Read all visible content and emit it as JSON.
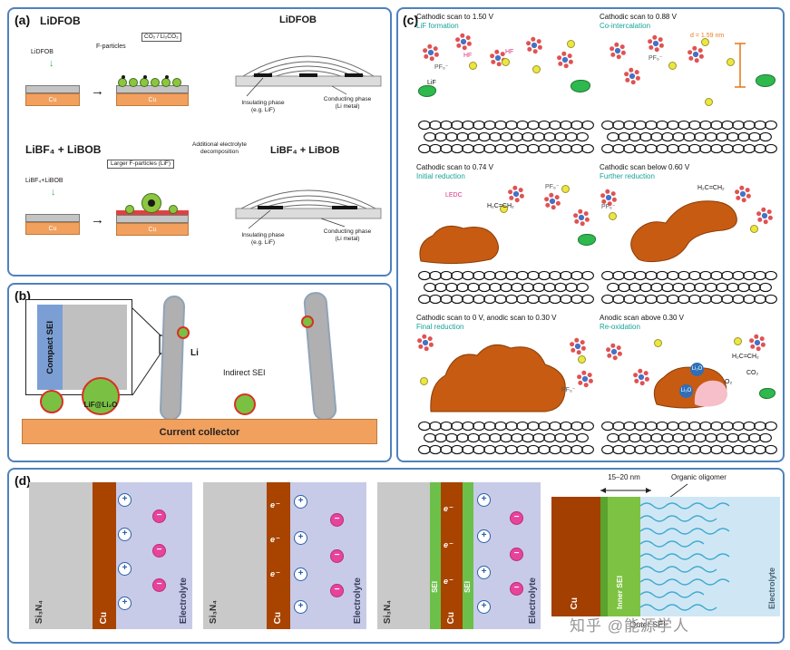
{
  "figure": {
    "watermark": "知乎 @能源学人"
  },
  "colors": {
    "panel_border_blue": "#4f81bd",
    "subtitle_teal": "#17a398",
    "sei_orange": "#c75b12",
    "cu_dark": "#a84300",
    "sei_green": "#7dc242",
    "electrolyte_lavender": "#c7cbe8",
    "electrolyte_blue": "#cfe7f5",
    "collector_orange": "#f2a05e",
    "particle_green": "#7ac143",
    "cation_blue": "#2b5fad",
    "anion_pink": "#e8439a",
    "measure_orange": "#e67e22"
  },
  "panels": {
    "a": {
      "tag": "(a)",
      "cu": "Cu",
      "rows": [
        {
          "left_title": "LiDFOB",
          "drop_label": "LiDFOB",
          "down_arrow": "↓",
          "arrow": "→",
          "particle_label": "F-particles",
          "byproduct_label": "CO₂ / Li₂CO₃",
          "right_title": "LiDFOB",
          "insulating_1": "Insulating phase",
          "insulating_2": "(e.g. LiF)",
          "conducting_1": "Conducting phase",
          "conducting_2": "(Li metal)"
        },
        {
          "left_title": "LiBF₄ + LiBOB",
          "drop_label": "LiBF₄+LiBOB",
          "down_arrow": "↓",
          "arrow": "→",
          "particle_label": "Larger F-particles (LiF)",
          "byproduct_label": "Additional electrolyte decomposition",
          "right_title": "LiBF₄ + LiBOB",
          "insulating_1": "Insulating phase",
          "insulating_2": "(e.g. LiF)",
          "conducting_1": "Conducting phase",
          "conducting_2": "(Li metal)"
        }
      ]
    },
    "b": {
      "tag": "(b)",
      "inset_label": "Compact SEI",
      "li_label": "Li",
      "particle_label": "LiF@Li₂O",
      "indirect_label": "Indirect SEI",
      "collector_label": "Current collector"
    },
    "c": {
      "tag": "(c)",
      "pf6": "PF₆⁻",
      "subpanels": [
        {
          "title": "Cathodic scan to 1.50 V",
          "subtitle": "LiF formation",
          "l1": "HF",
          "l2": "LiF"
        },
        {
          "title": "Cathodic scan to 0.88 V",
          "subtitle": "Co-intercalation",
          "l1": "d = 1.59 nm"
        },
        {
          "title": "Cathodic scan to 0.74 V",
          "subtitle": "Initial reduction",
          "l1": "LEDC",
          "l2": "H₂C=CH₂"
        },
        {
          "title": "Cathodic scan below 0.60 V",
          "subtitle": "Further reduction",
          "l1": "H₂C=CH₂"
        },
        {
          "title": "Cathodic scan to 0 V, anodic scan to 0.30 V",
          "subtitle": "Final reduction"
        },
        {
          "title": "Anodic scan above 0.30 V",
          "subtitle": "Re-oxidation",
          "l1": "Li₂O",
          "l3": "H₂C=CH₂",
          "l4": "CO₂",
          "l5": "O₂"
        }
      ]
    },
    "d": {
      "tag": "(d)",
      "plus": "+",
      "minus": "−",
      "electron": "e⁻",
      "si3n4": "Si₃N₄",
      "cu": "Cu",
      "electrolyte": "Electrolyte",
      "sei": "SEI",
      "inner_sei": "Inner SEI",
      "outer_sei": "Outer SEI",
      "scale": "15–20 nm",
      "oligomer": "Organic oligomer"
    }
  }
}
